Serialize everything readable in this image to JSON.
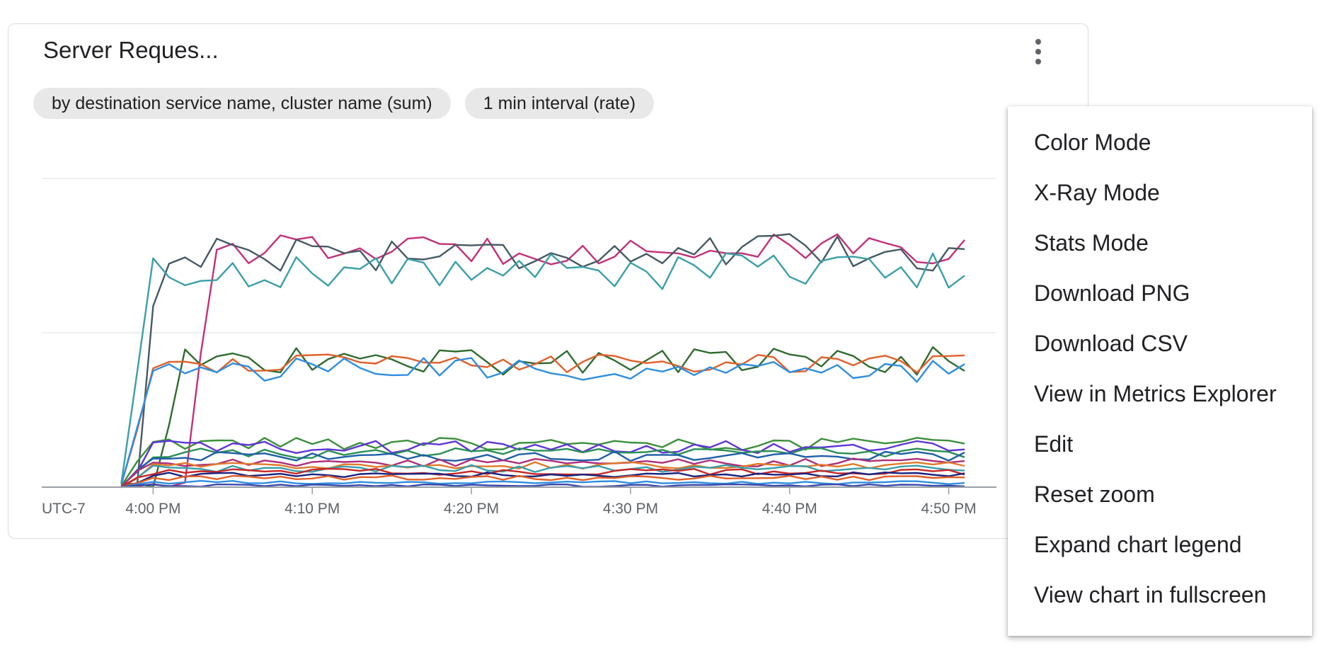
{
  "card": {
    "title": "Server Reques...",
    "chips": [
      "by destination service name, cluster name (sum)",
      "1 min interval (rate)"
    ]
  },
  "menu": {
    "items": [
      "Color Mode",
      "X-Ray Mode",
      "Stats Mode",
      "Download PNG",
      "Download CSV",
      "View in Metrics Explorer",
      "Edit",
      "Reset zoom",
      "Expand chart legend",
      "View chart in fullscreen"
    ]
  },
  "chart_data": {
    "type": "line",
    "timezone_label": "UTC-7",
    "x_tick_labels": [
      "4:00 PM",
      "4:10 PM",
      "4:20 PM",
      "4:30 PM",
      "4:40 PM",
      "4:50 PM"
    ],
    "x_ticks_minutes": [
      0,
      10,
      20,
      30,
      40,
      50
    ],
    "xlim_minutes": [
      -7,
      53
    ],
    "x_start_minute": -2,
    "x_end_minute": 51.5,
    "ylim": [
      0,
      100
    ],
    "grid": true,
    "y_gridlines": [
      50,
      100
    ],
    "series": [
      {
        "color": "#c2307a",
        "start": 3,
        "base": 77,
        "amp": 2.5
      },
      {
        "color": "#455a64",
        "start": -0.5,
        "base": 76,
        "amp": 3
      },
      {
        "color": "#3a9fa8",
        "start": -1,
        "base": 70,
        "amp": 3
      },
      {
        "color": "#2f6b2f",
        "start": 1,
        "base": 41,
        "amp": 2.5
      },
      {
        "color": "#e0602a",
        "start": -1,
        "base": 40,
        "amp": 1.5
      },
      {
        "color": "#2f8ee0",
        "start": -1,
        "base": 38,
        "amp": 2
      },
      {
        "color": "#3b8f3b",
        "start": -1,
        "base": 14,
        "amp": 1
      },
      {
        "color": "#5e35d8",
        "start": -1,
        "base": 13,
        "amp": 1
      },
      {
        "color": "#2a8f55",
        "start": -1,
        "base": 11,
        "amp": 0.8
      },
      {
        "color": "#1f5fa8",
        "start": -1,
        "base": 10,
        "amp": 0.8
      },
      {
        "color": "#ad2f7a",
        "start": -1,
        "base": 8,
        "amp": 0.7
      },
      {
        "color": "#e07a2a",
        "start": -1,
        "base": 7,
        "amp": 0.6
      },
      {
        "color": "#3a9fa8",
        "start": -1,
        "base": 6,
        "amp": 0.6
      },
      {
        "color": "#c62828",
        "start": -1,
        "base": 5,
        "amp": 0.5
      },
      {
        "color": "#1a237e",
        "start": -1,
        "base": 4,
        "amp": 0.4
      },
      {
        "color": "#e0602a",
        "start": -1,
        "base": 3,
        "amp": 0.4
      },
      {
        "color": "#2f8ee0",
        "start": -1,
        "base": 1.5,
        "amp": 0.3
      },
      {
        "color": "#3949ab",
        "start": -1,
        "base": 0.5,
        "amp": 0.2
      }
    ]
  }
}
